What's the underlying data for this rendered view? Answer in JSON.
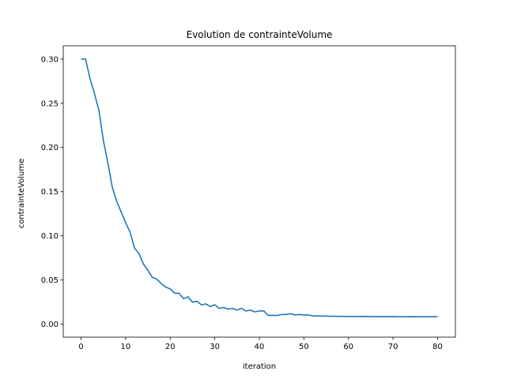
{
  "chart_data": {
    "type": "line",
    "title": "Evolution de contrainteVolume",
    "xlabel": "iteration",
    "ylabel": "contrainteVolume",
    "xlim": [
      -4,
      84
    ],
    "ylim": [
      -0.0146,
      0.315
    ],
    "xticks": [
      0,
      10,
      20,
      30,
      40,
      50,
      60,
      70,
      80
    ],
    "yticks": [
      0.0,
      0.05,
      0.1,
      0.15,
      0.2,
      0.25,
      0.3
    ],
    "ytick_labels": [
      "0.00",
      "0.05",
      "0.10",
      "0.15",
      "0.20",
      "0.25",
      "0.30"
    ],
    "xtick_labels": [
      "0",
      "10",
      "20",
      "30",
      "40",
      "50",
      "60",
      "70",
      "80"
    ],
    "grid": false,
    "series": [
      {
        "color": "#1f77b4",
        "x": [
          0,
          1,
          2,
          3,
          4,
          5,
          6,
          7,
          8,
          9,
          10,
          11,
          12,
          13,
          14,
          15,
          16,
          17,
          18,
          19,
          20,
          21,
          22,
          23,
          24,
          25,
          26,
          27,
          28,
          29,
          30,
          31,
          32,
          33,
          34,
          35,
          36,
          37,
          38,
          39,
          40,
          41,
          42,
          43,
          44,
          45,
          46,
          47,
          48,
          49,
          50,
          51,
          52,
          53,
          54,
          55,
          56,
          57,
          58,
          59,
          60,
          61,
          62,
          63,
          64,
          65,
          66,
          67,
          68,
          69,
          70,
          71,
          72,
          73,
          74,
          75,
          76,
          77,
          78,
          79,
          80
        ],
        "values": [
          0.3,
          0.3,
          0.278,
          0.261,
          0.242,
          0.208,
          0.183,
          0.155,
          0.139,
          0.127,
          0.115,
          0.104,
          0.086,
          0.08,
          0.068,
          0.061,
          0.053,
          0.051,
          0.046,
          0.042,
          0.04,
          0.035,
          0.035,
          0.029,
          0.031,
          0.025,
          0.026,
          0.022,
          0.023,
          0.02,
          0.022,
          0.018,
          0.019,
          0.017,
          0.018,
          0.016,
          0.018,
          0.015,
          0.016,
          0.014,
          0.015,
          0.015,
          0.01,
          0.01,
          0.01,
          0.011,
          0.011,
          0.012,
          0.0105,
          0.011,
          0.0105,
          0.0105,
          0.0095,
          0.0095,
          0.0093,
          0.0092,
          0.009,
          0.009,
          0.0089,
          0.0089,
          0.0088,
          0.0088,
          0.0087,
          0.0087,
          0.0088,
          0.0087,
          0.0087,
          0.0086,
          0.0087,
          0.0086,
          0.0087,
          0.0085,
          0.0086,
          0.0085,
          0.0086,
          0.0085,
          0.0085,
          0.0085,
          0.0085,
          0.0085,
          0.0086
        ]
      }
    ]
  }
}
